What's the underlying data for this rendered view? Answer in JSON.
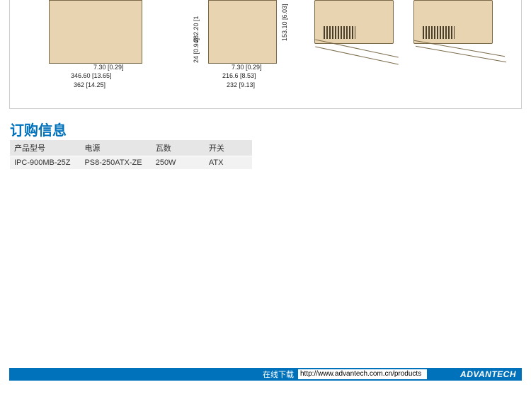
{
  "section_title": "订购信息",
  "section_title_color": "#0072bc",
  "dimensions": {
    "a_730": "7.30 [0.29]",
    "a_34660": "346.60 [13.65]",
    "a_362": "362 [14.25]",
    "a_28220": "282.20 [1",
    "b_24": "24 [0.94]",
    "b_730": "7.30 [0.29]",
    "b_2166": "216.6 [8.53]",
    "b_232": "232 [9.13]",
    "b_15310": "153.10\n[6.03]"
  },
  "table": {
    "headers": [
      "产品型号",
      "电源",
      "瓦数",
      "开关"
    ],
    "rows": [
      [
        "IPC-900MB-25Z",
        "PS8-250ATX-ZE",
        "250W",
        "ATX"
      ]
    ],
    "col_widths": [
      "100px",
      "100px",
      "72px",
      "64px"
    ]
  },
  "footer": {
    "label": "在线下载",
    "url": "http://www.advantech.com.cn/products",
    "logo": "ADVANTECH"
  },
  "colors": {
    "brand_blue": "#0072bc",
    "beige": "#e8d4b0",
    "beige_border": "#7a6a4a",
    "header_bg": "#e6e6e6",
    "row_bg": "#f2f2f2"
  }
}
